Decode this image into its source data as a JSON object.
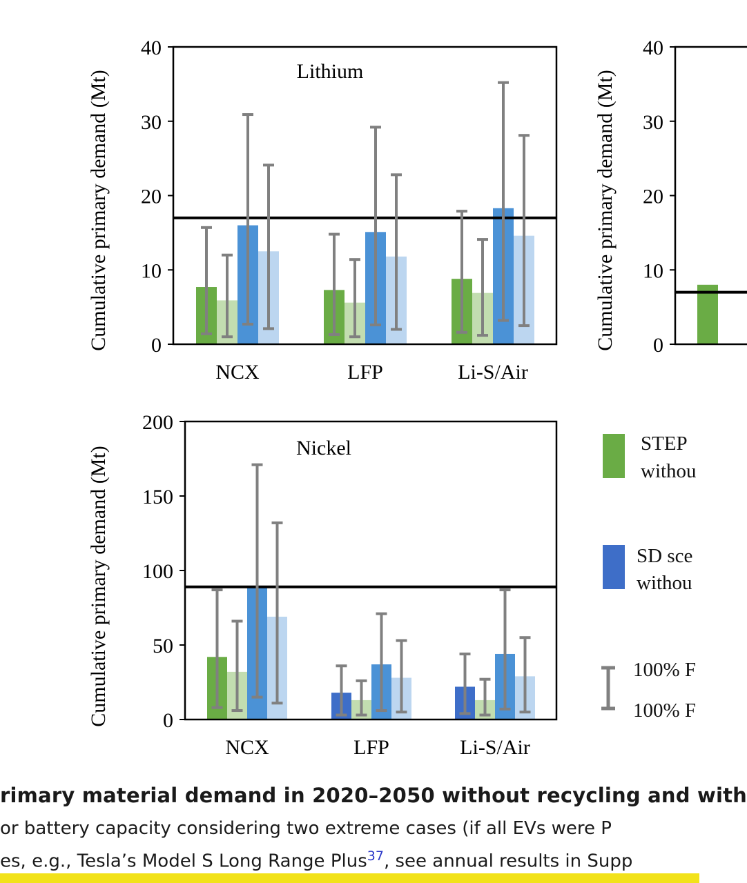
{
  "chart_data": [
    {
      "type": "bar",
      "title": "Lithium",
      "ylabel": "Cumulative primary demand (Mt)",
      "ylim": [
        0,
        40
      ],
      "yticks": [
        0,
        10,
        20,
        30,
        40
      ],
      "categories": [
        "NCX",
        "LFP",
        "Li-S/Air"
      ],
      "reference_line": 17,
      "series": [
        {
          "color": "#6aac45",
          "values": [
            7.7,
            7.3,
            8.8
          ],
          "err_low": [
            1.4,
            1.3,
            1.6
          ],
          "err_high": [
            15.7,
            14.8,
            17.9
          ]
        },
        {
          "color": "#c2ddb0",
          "values": [
            5.9,
            5.6,
            6.9
          ],
          "err_low": [
            1.0,
            1.0,
            1.2
          ],
          "err_high": [
            12.0,
            11.4,
            14.1
          ]
        },
        {
          "color": "#4b92d6",
          "values": [
            16.0,
            15.1,
            18.3
          ],
          "err_low": [
            2.7,
            2.6,
            3.2
          ],
          "err_high": [
            30.9,
            29.2,
            35.2
          ]
        },
        {
          "color": "#bcd6f0",
          "values": [
            12.5,
            11.8,
            14.6
          ],
          "err_low": [
            2.1,
            2.0,
            2.5
          ],
          "err_high": [
            24.1,
            22.8,
            28.1
          ]
        }
      ]
    },
    {
      "type": "bar",
      "title": "Nickel",
      "ylabel": "Cumulative primary demand (Mt)",
      "ylim": [
        0,
        200
      ],
      "yticks": [
        0,
        50,
        100,
        150,
        200
      ],
      "categories": [
        "NCX",
        "LFP",
        "Li-S/Air"
      ],
      "reference_line": 89,
      "series": [
        {
          "colors": [
            "#6aac45",
            "#3e6ec8",
            "#3e6ec8"
          ],
          "values": [
            42,
            18,
            22
          ],
          "err_low": [
            8,
            3,
            4
          ],
          "err_high": [
            87,
            36,
            44
          ]
        },
        {
          "color": "#c2ddb0",
          "values": [
            32,
            13,
            13
          ],
          "err_low": [
            6,
            3,
            3
          ],
          "err_high": [
            66,
            26,
            27
          ]
        },
        {
          "color": "#4b92d6",
          "values": [
            89,
            37,
            44
          ],
          "err_low": [
            15,
            6,
            7
          ],
          "err_high": [
            171,
            71,
            87
          ]
        },
        {
          "color": "#bcd6f0",
          "values": [
            69,
            28,
            29
          ],
          "err_low": [
            11,
            5,
            5
          ],
          "err_high": [
            132,
            53,
            55
          ]
        }
      ]
    },
    {
      "type": "bar",
      "title": "",
      "ylabel": "Cumulative primary demand (Mt)",
      "ylim": [
        0,
        40
      ],
      "yticks": [
        0,
        10,
        20,
        30,
        40
      ],
      "reference_line": 7,
      "series": [
        {
          "color": "#6aac45",
          "values": [
            8
          ]
        }
      ]
    }
  ],
  "legend": {
    "step_label": "STEP",
    "step_sub": "withou",
    "sd_label": "SD sce",
    "sd_sub": "withou",
    "err_top": "100% F",
    "err_bottom": "100% F",
    "colors": {
      "step": "#6aac45",
      "sd": "#3e6ec8",
      "errorbar": "#808080"
    }
  },
  "caption": {
    "line1": "rimary material demand in 2020–2050 without recycling and with",
    "line2": "or battery capacity considering two extreme cases (if all EVs were P",
    "line3_pre": "es, e.g., Tesla’s Model S Long Range Plus",
    "line3_ref": "37",
    "line3_post": ", see annual results in Supp"
  }
}
